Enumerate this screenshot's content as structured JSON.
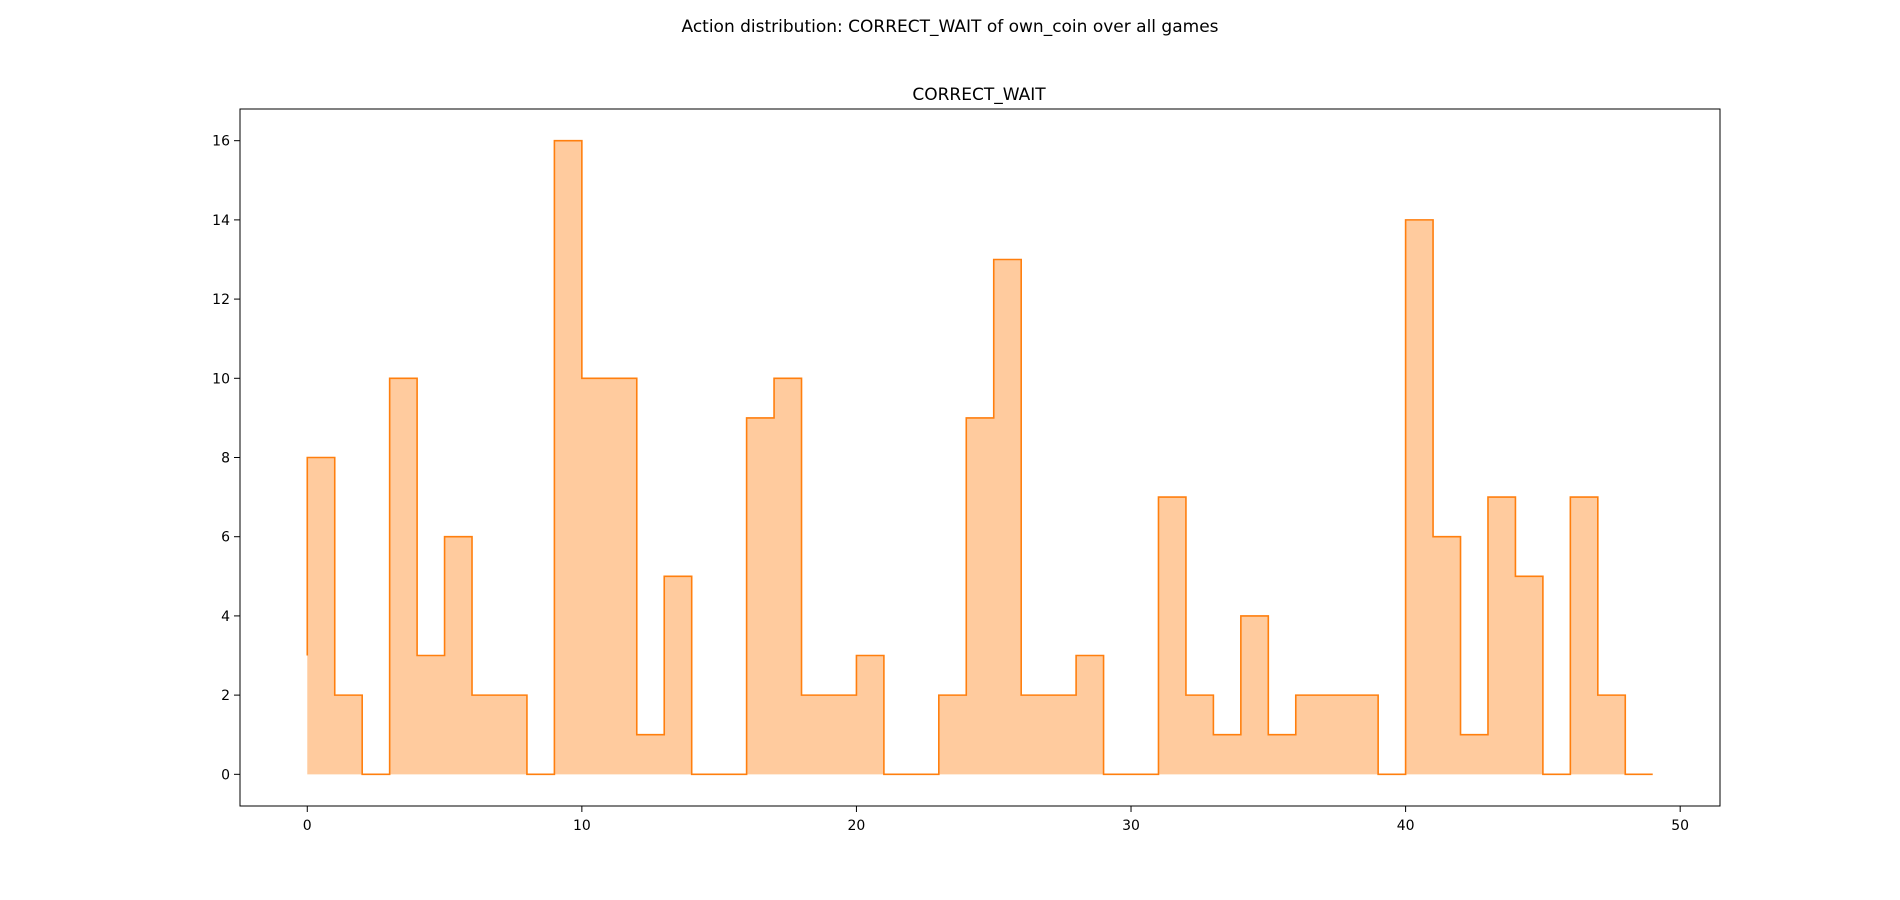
{
  "figure": {
    "suptitle": "Action distribution: CORRECT_WAIT of own_coin over all games"
  },
  "chart_data": {
    "type": "area",
    "title": "CORRECT_WAIT",
    "xlabel": "",
    "ylabel": "",
    "xlim": [
      -2.45,
      51.45
    ],
    "ylim": [
      -0.8,
      16.8
    ],
    "xticks": [
      0,
      10,
      20,
      30,
      40,
      50
    ],
    "yticks": [
      0,
      2,
      4,
      6,
      8,
      10,
      12,
      14,
      16
    ],
    "grid": false,
    "legend": "none",
    "step": "post",
    "color_line": "#ff7f0e",
    "color_fill": "#ffcb9e",
    "series": [
      {
        "x": [
          0,
          1,
          2,
          3,
          4,
          5,
          6,
          7,
          8,
          9,
          10,
          11,
          12,
          13,
          14,
          15,
          16,
          17,
          18,
          19,
          20,
          21,
          22,
          23,
          24,
          25,
          26,
          27,
          28,
          29,
          30,
          31,
          32,
          33,
          34,
          35,
          36,
          37,
          38,
          39,
          40,
          41,
          42,
          43,
          44,
          45,
          46,
          47,
          48,
          49
        ],
        "values": [
          8,
          2,
          0,
          10,
          3,
          6,
          2,
          2,
          0,
          16,
          10,
          10,
          1,
          5,
          0,
          0,
          9,
          10,
          2,
          2,
          3,
          0,
          0,
          2,
          9,
          13,
          2,
          2,
          3,
          0,
          0,
          7,
          2,
          1,
          4,
          1,
          2,
          2,
          2,
          0,
          14,
          6,
          1,
          7,
          5,
          0,
          7,
          2,
          0,
          0
        ],
        "first_value_start": 3
      }
    ]
  }
}
